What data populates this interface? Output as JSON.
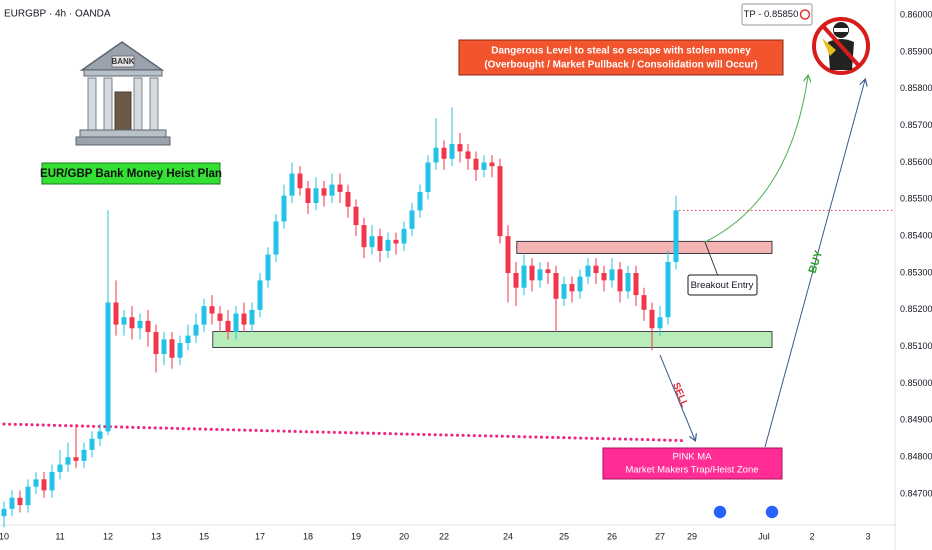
{
  "chart_data": {
    "type": "candlestick",
    "symbol_label": "EURGBP · 4h · OANDA",
    "up_color": "#22c3e6",
    "down_color": "#f2364d",
    "ylim": [
      0.84616,
      0.86041
    ],
    "xlim": [
      -0.5,
      111.5
    ],
    "grid": false,
    "yticks": [
      {
        "value": 0.86,
        "label": "0.86000"
      },
      {
        "value": 0.859,
        "label": "0.85900"
      },
      {
        "value": 0.858,
        "label": "0.85800"
      },
      {
        "value": 0.857,
        "label": "0.85700"
      },
      {
        "value": 0.856,
        "label": "0.85600"
      },
      {
        "value": 0.855,
        "label": "0.85500"
      },
      {
        "value": 0.854,
        "label": "0.85400"
      },
      {
        "value": 0.853,
        "label": "0.85300"
      },
      {
        "value": 0.852,
        "label": "0.85200"
      },
      {
        "value": 0.851,
        "label": "0.85100"
      },
      {
        "value": 0.85,
        "label": "0.85000"
      },
      {
        "value": 0.849,
        "label": "0.84900"
      },
      {
        "value": 0.848,
        "label": "0.84800"
      },
      {
        "value": 0.847,
        "label": "0.84700"
      }
    ],
    "xticks": [
      {
        "value": 0,
        "label": "10"
      },
      {
        "value": 7,
        "label": "11"
      },
      {
        "value": 13,
        "label": "12"
      },
      {
        "value": 19,
        "label": "13"
      },
      {
        "value": 25,
        "label": "15"
      },
      {
        "value": 32,
        "label": "17"
      },
      {
        "value": 38,
        "label": "18"
      },
      {
        "value": 44,
        "label": "19"
      },
      {
        "value": 50,
        "label": "20"
      },
      {
        "value": 55,
        "label": "22"
      },
      {
        "value": 63,
        "label": "24"
      },
      {
        "value": 70,
        "label": "25"
      },
      {
        "value": 76,
        "label": "26"
      },
      {
        "value": 82,
        "label": "27"
      },
      {
        "value": 86,
        "label": "29"
      },
      {
        "value": 95,
        "label": "Jul"
      },
      {
        "value": 101,
        "label": "2"
      },
      {
        "value": 108,
        "label": "3"
      }
    ],
    "open": [
      0.8464,
      0.8466,
      0.8469,
      0.8467,
      0.8472,
      0.8474,
      0.8471,
      0.8476,
      0.8478,
      0.848,
      0.8479,
      0.8482,
      0.8485,
      0.8487,
      0.8522,
      0.8516,
      0.8518,
      0.8515,
      0.8517,
      0.8514,
      0.8508,
      0.8512,
      0.8507,
      0.8511,
      0.8513,
      0.8516,
      0.8521,
      0.8519,
      0.8517,
      0.8514,
      0.8519,
      0.8516,
      0.852,
      0.8528,
      0.8535,
      0.8544,
      0.8551,
      0.8557,
      0.8553,
      0.8549,
      0.8553,
      0.8551,
      0.8554,
      0.8552,
      0.8548,
      0.8543,
      0.8537,
      0.854,
      0.8536,
      0.8539,
      0.8538,
      0.8542,
      0.8547,
      0.8552,
      0.856,
      0.8564,
      0.8561,
      0.8565,
      0.8563,
      0.8561,
      0.8558,
      0.856,
      0.8559,
      0.854,
      0.853,
      0.8526,
      0.8532,
      0.8528,
      0.8531,
      0.853,
      0.8523,
      0.8527,
      0.8525,
      0.8529,
      0.8532,
      0.853,
      0.8528,
      0.8531,
      0.8525,
      0.853,
      0.8524,
      0.852,
      0.8515,
      0.8518,
      0.8533
    ],
    "high": [
      0.8468,
      0.8471,
      0.8471,
      0.8474,
      0.8476,
      0.8476,
      0.8478,
      0.8482,
      0.8484,
      0.8489,
      0.8484,
      0.8487,
      0.8489,
      0.8547,
      0.8528,
      0.852,
      0.8521,
      0.8519,
      0.852,
      0.8516,
      0.8514,
      0.8514,
      0.8513,
      0.8516,
      0.8519,
      0.8523,
      0.8524,
      0.8521,
      0.852,
      0.8521,
      0.8522,
      0.8522,
      0.853,
      0.8537,
      0.8546,
      0.8554,
      0.856,
      0.8559,
      0.8555,
      0.8556,
      0.8555,
      0.8557,
      0.8557,
      0.8554,
      0.855,
      0.8545,
      0.8543,
      0.8542,
      0.8541,
      0.8541,
      0.8544,
      0.8549,
      0.8554,
      0.8562,
      0.8572,
      0.8566,
      0.8575,
      0.8568,
      0.8565,
      0.8563,
      0.8562,
      0.8562,
      0.8561,
      0.8543,
      0.8533,
      0.8535,
      0.8534,
      0.8533,
      0.8533,
      0.8532,
      0.8529,
      0.8529,
      0.8531,
      0.8534,
      0.8534,
      0.8532,
      0.8534,
      0.8533,
      0.8532,
      0.8532,
      0.8526,
      0.8522,
      0.8521,
      0.8536,
      0.8551
    ],
    "low": [
      0.8461,
      0.8464,
      0.8465,
      0.8465,
      0.847,
      0.8469,
      0.8469,
      0.8474,
      0.8476,
      0.8477,
      0.8477,
      0.848,
      0.8483,
      0.8486,
      0.8513,
      0.8513,
      0.8512,
      0.8512,
      0.851,
      0.8503,
      0.8505,
      0.8504,
      0.8505,
      0.8509,
      0.8511,
      0.8514,
      0.8516,
      0.8514,
      0.8512,
      0.8512,
      0.8514,
      0.8514,
      0.8518,
      0.8526,
      0.8533,
      0.8542,
      0.8549,
      0.8551,
      0.8546,
      0.8547,
      0.8548,
      0.8549,
      0.8549,
      0.8545,
      0.854,
      0.8534,
      0.8535,
      0.8533,
      0.8534,
      0.8535,
      0.8536,
      0.854,
      0.8545,
      0.855,
      0.8558,
      0.8558,
      0.8559,
      0.856,
      0.8558,
      0.8555,
      0.8556,
      0.8556,
      0.8538,
      0.8522,
      0.8521,
      0.8524,
      0.8525,
      0.8526,
      0.8527,
      0.8514,
      0.8521,
      0.8522,
      0.8523,
      0.8527,
      0.8527,
      0.8525,
      0.8526,
      0.8522,
      0.8523,
      0.8521,
      0.8517,
      0.8509,
      0.8513,
      0.8516,
      0.8531
    ],
    "close": [
      0.8466,
      0.8469,
      0.8467,
      0.8472,
      0.8474,
      0.8471,
      0.8476,
      0.8478,
      0.848,
      0.8479,
      0.8482,
      0.8485,
      0.8487,
      0.8522,
      0.8516,
      0.8518,
      0.8515,
      0.8517,
      0.8514,
      0.8508,
      0.8512,
      0.8507,
      0.8511,
      0.8513,
      0.8516,
      0.8521,
      0.8519,
      0.8517,
      0.8514,
      0.8519,
      0.8516,
      0.852,
      0.8528,
      0.8535,
      0.8544,
      0.8551,
      0.8557,
      0.8553,
      0.8549,
      0.8553,
      0.8551,
      0.8554,
      0.8552,
      0.8548,
      0.8543,
      0.8537,
      0.854,
      0.8536,
      0.8539,
      0.8538,
      0.8542,
      0.8547,
      0.8552,
      0.856,
      0.8564,
      0.8561,
      0.8565,
      0.8563,
      0.8561,
      0.8558,
      0.856,
      0.8559,
      0.854,
      0.853,
      0.8526,
      0.8532,
      0.8528,
      0.8531,
      0.853,
      0.8523,
      0.8527,
      0.8525,
      0.8529,
      0.8532,
      0.853,
      0.8528,
      0.8531,
      0.8525,
      0.853,
      0.8524,
      0.852,
      0.8515,
      0.8518,
      0.8533,
      0.8547
    ],
    "ma": {
      "color": "#f0247a",
      "x": [
        0,
        20,
        40,
        60,
        80,
        85
      ],
      "values": [
        0.8489,
        0.84879,
        0.84868,
        0.84858,
        0.84848,
        0.84845
      ]
    },
    "zones": [
      {
        "color": "#f4b4b4",
        "top": 0.85386,
        "bottom": 0.85353,
        "start": 64.1,
        "end": 96
      },
      {
        "color": "#b8ecb8",
        "top": 0.85141,
        "bottom": 0.85098,
        "start": 26.1,
        "end": 96
      }
    ],
    "annotations": {
      "plan_label": "EUR/GBP Bank Money Heist Plan",
      "tp_label": "TP - 0.85850",
      "warning": [
        "Dangerous Level to steal so escape with stolen money",
        "(Overbought / Market Pullback / Consolidation will Occur)"
      ],
      "entry_label": "Breakout Entry",
      "sell_label": "SELL",
      "buy_label": "BUY",
      "zone_label": [
        "PINK MA",
        "Market Makers Trap/Heist Zone"
      ]
    }
  }
}
